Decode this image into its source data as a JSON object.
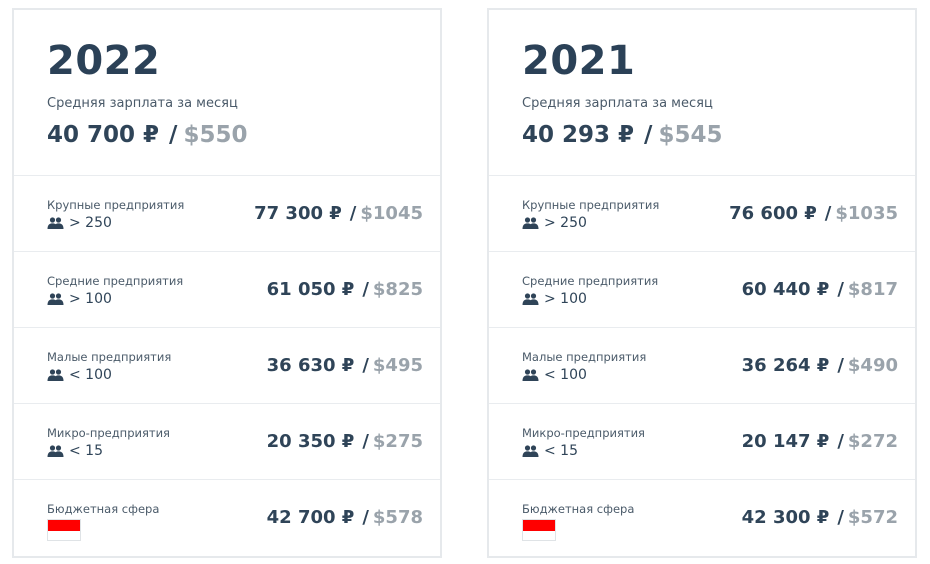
{
  "cards": [
    {
      "year": "2022",
      "avg_label": "Средняя зарплата за месяц",
      "avg_rub": "40 700 ₽",
      "avg_sep": "/",
      "avg_usd": "$550",
      "rows": [
        {
          "title": "Крупные предприятия",
          "sub": "> 250",
          "rub": "77 300 ₽",
          "usd": "$1045"
        },
        {
          "title": "Средние предприятия",
          "sub": "> 100",
          "rub": "61 050 ₽",
          "usd": "$825"
        },
        {
          "title": "Малые предприятия",
          "sub": "< 100",
          "rub": "36 630 ₽",
          "usd": "$495"
        },
        {
          "title": "Микро-предприятия",
          "sub": "< 15",
          "rub": "20 350 ₽",
          "usd": "$275"
        },
        {
          "title": "Бюджетная сфера",
          "rub": "42 700 ₽",
          "usd": "$578"
        }
      ]
    },
    {
      "year": "2021",
      "avg_label": "Средняя зарплата за месяц",
      "avg_rub": "40 293 ₽",
      "avg_sep": "/",
      "avg_usd": "$545",
      "rows": [
        {
          "title": "Крупные предприятия",
          "sub": "> 250",
          "rub": "76 600 ₽",
          "usd": "$1035"
        },
        {
          "title": "Средние предприятия",
          "sub": "> 100",
          "rub": "60 440 ₽",
          "usd": "$817"
        },
        {
          "title": "Малые предприятия",
          "sub": "< 100",
          "rub": "36 264 ₽",
          "usd": "$490"
        },
        {
          "title": "Микро-предприятия",
          "sub": "< 15",
          "rub": "20 147 ₽",
          "usd": "$272"
        },
        {
          "title": "Бюджетная сфера",
          "rub": "42 300 ₽",
          "usd": "$572"
        }
      ]
    }
  ],
  "separator": "/",
  "icons": {
    "employees": "people-icon",
    "public_sector": "flag-icon"
  },
  "colors": {
    "primary_text": "#2f4458",
    "usd_text": "#9aa3ab",
    "flag_red": "#ff0000"
  }
}
